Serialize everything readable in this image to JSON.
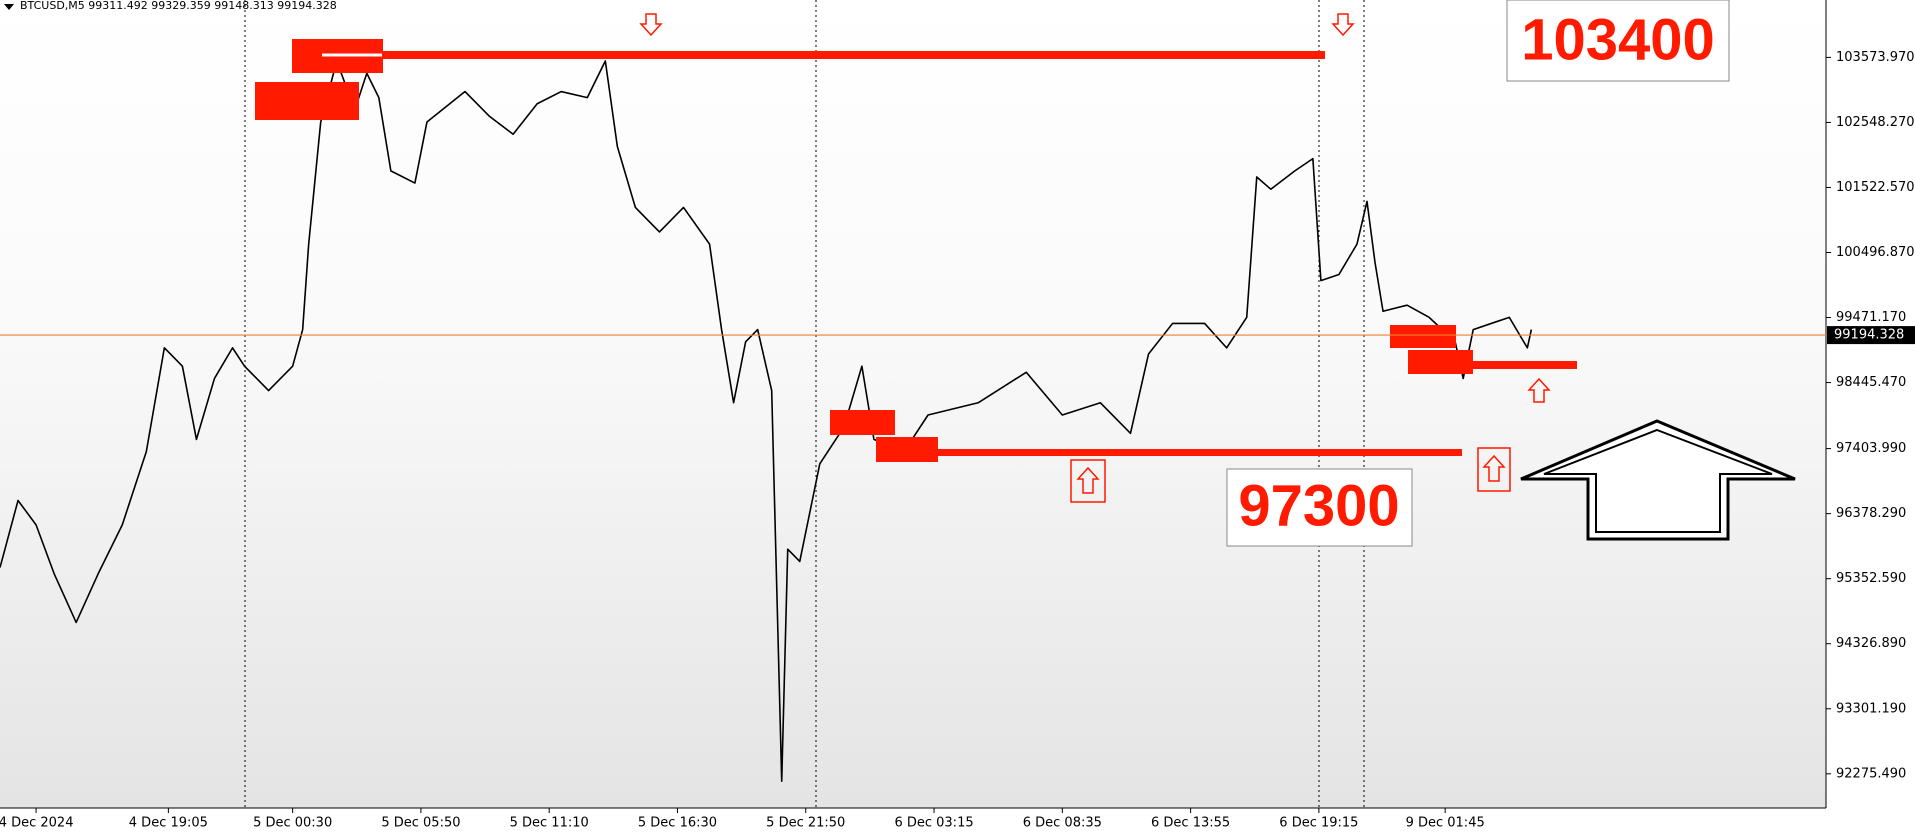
{
  "chart_data": {
    "type": "line",
    "title": "BTCUSD,M5  99311.492 99329.359 99148.313 99194.328",
    "x": [
      0,
      9,
      18,
      27,
      38,
      49,
      61,
      73,
      82,
      91,
      98,
      107,
      116,
      122,
      134,
      146,
      151,
      154,
      160,
      168,
      177,
      183,
      189,
      195,
      207,
      213,
      232,
      244,
      256,
      268,
      280,
      293,
      302,
      308,
      317,
      329,
      341,
      354,
      360,
      366,
      372,
      378,
      385,
      390,
      393,
      399,
      409,
      421,
      430,
      436,
      451,
      463,
      488,
      512,
      530,
      549,
      564,
      573,
      585,
      601,
      612,
      622,
      627,
      634,
      646,
      655,
      659,
      668,
      677,
      682,
      686,
      690,
      702,
      713,
      726,
      730,
      735,
      744,
      753,
      762,
      764
    ],
    "series": [
      {
        "name": "BTCUSD,M5",
        "color": "#000000",
        "values": [
          95528,
          96586,
          96201,
          95432,
          94662,
          95432,
          96201,
          97356,
          98993,
          98704,
          97549,
          98511,
          98993,
          98704,
          98319,
          98704,
          99281,
          100629,
          102554,
          103517,
          102747,
          103324,
          102939,
          101784,
          101592,
          102554,
          103035,
          102650,
          102362,
          102843,
          103035,
          102939,
          103517,
          102169,
          101207,
          100822,
          101207,
          100629,
          99281,
          98127,
          99089,
          99281,
          98319,
          92159,
          95817,
          95624,
          97164,
          97741,
          98704,
          97549,
          97356,
          97934,
          98127,
          98608,
          97934,
          98127,
          97645,
          98896,
          99378,
          99378,
          98993,
          99474,
          101688,
          101495,
          101784,
          101977,
          100054,
          100150,
          100629,
          101303,
          100340,
          99570,
          99666,
          99474,
          99089,
          98511,
          99281,
          99378,
          99474,
          98993,
          99281
        ]
      }
    ],
    "xlim": [
      0,
      911
    ],
    "xticks": [
      {
        "value": 18,
        "label": "4 Dec 2024"
      },
      {
        "value": 84,
        "label": "4 Dec 19:05"
      },
      {
        "value": 146,
        "label": "5 Dec 00:30"
      },
      {
        "value": 210,
        "label": "5 Dec 05:50"
      },
      {
        "value": 274,
        "label": "5 Dec 11:10"
      },
      {
        "value": 338,
        "label": "5 Dec 16:30"
      },
      {
        "value": 402,
        "label": "5 Dec 21:50"
      },
      {
        "value": 466,
        "label": "6 Dec 03:15"
      },
      {
        "value": 530,
        "label": "6 Dec 08:35"
      },
      {
        "value": 594,
        "label": "6 Dec 13:55"
      },
      {
        "value": 658,
        "label": "6 Dec 19:15"
      },
      {
        "value": 721,
        "label": "9 Dec 01:45"
      }
    ],
    "ylim": [
      91736,
      104479
    ],
    "yticks": [
      {
        "value": 103573.97,
        "label": "103573.970"
      },
      {
        "value": 102548.27,
        "label": "102548.270"
      },
      {
        "value": 101522.57,
        "label": "101522.570"
      },
      {
        "value": 100496.87,
        "label": "100496.870"
      },
      {
        "value": 99471.17,
        "label": "99471.170"
      },
      {
        "value": 98445.47,
        "label": "98445.470"
      },
      {
        "value": 97403.99,
        "label": "97403.990"
      },
      {
        "value": 96378.29,
        "label": "96378.290"
      },
      {
        "value": 95352.59,
        "label": "95352.590"
      },
      {
        "value": 94326.89,
        "label": "94326.890"
      },
      {
        "value": 93301.19,
        "label": "93301.190"
      },
      {
        "value": 92275.49,
        "label": "92275.490"
      }
    ],
    "last_price": 99194.328,
    "last_price_color": "#f08030",
    "annotations": [
      "103400",
      "97300"
    ]
  }
}
